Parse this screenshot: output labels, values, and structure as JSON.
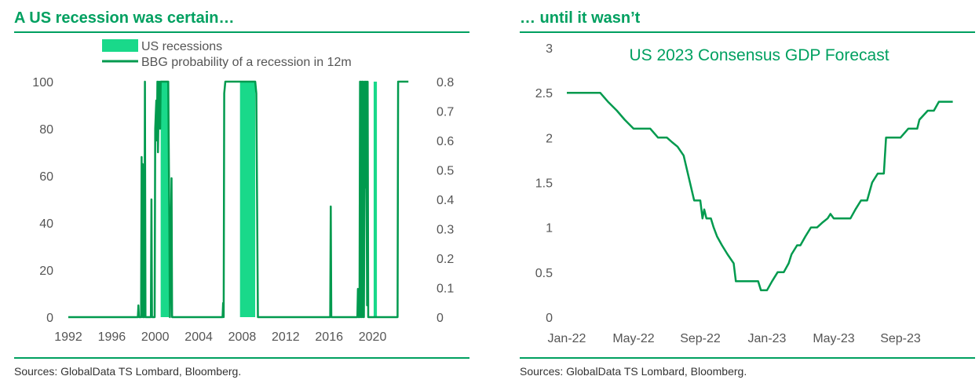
{
  "colors": {
    "accent": "#00a060",
    "line": "#009a4e",
    "recession": "#19d98a",
    "text": "#555555"
  },
  "left": {
    "title": "A US recession was certain…",
    "source": "Sources: GlobalData TS Lombard, Bloomberg.",
    "legend": [
      {
        "key": "US recessions",
        "style": "band"
      },
      {
        "key": "BBG probability of a recession in 12m",
        "style": "line"
      }
    ]
  },
  "right": {
    "title": "… until it wasn’t",
    "source": "Sources: GlobalData TS Lombard, Bloomberg."
  },
  "chart_data": [
    {
      "type": "line",
      "title": "A US recession was certain…",
      "x_range": [
        1992,
        2023.5
      ],
      "x_ticks": [
        "1992",
        "1996",
        "2000",
        "2004",
        "2008",
        "2012",
        "2016",
        "2020"
      ],
      "y_left_range": [
        0,
        100
      ],
      "y_left_ticks": [
        "0",
        "20",
        "40",
        "60",
        "80",
        "100"
      ],
      "y_right_range": [
        0,
        0.8
      ],
      "y_right_ticks": [
        "0",
        "0.1",
        "0.2",
        "0.3",
        "0.4",
        "0.5",
        "0.6",
        "0.7",
        "0.8"
      ],
      "grid": false,
      "legend_position": "top",
      "series": [
        {
          "name": "US recessions",
          "style": "band",
          "axis": "left",
          "periods": [
            [
              2000.5,
              2001.25
            ],
            [
              2007.8,
              2009.2
            ],
            [
              2020.1,
              2020.4
            ]
          ]
        },
        {
          "name": "BBG probability of a recession in 12m",
          "style": "line",
          "axis": "left",
          "points": [
            [
              1992,
              0
            ],
            [
              1998.4,
              0
            ],
            [
              1998.45,
              5
            ],
            [
              1998.5,
              0
            ],
            [
              1998.7,
              0
            ],
            [
              1998.75,
              68
            ],
            [
              1998.8,
              0
            ],
            [
              1998.85,
              65
            ],
            [
              1998.9,
              0
            ],
            [
              1999.0,
              0
            ],
            [
              1999.05,
              100
            ],
            [
              1999.1,
              0
            ],
            [
              1999.6,
              0
            ],
            [
              1999.65,
              50
            ],
            [
              1999.7,
              0
            ],
            [
              1999.95,
              0
            ],
            [
              2000.0,
              80
            ],
            [
              2000.1,
              92
            ],
            [
              2000.15,
              75
            ],
            [
              2000.2,
              100
            ],
            [
              2000.25,
              70
            ],
            [
              2000.35,
              100
            ],
            [
              2000.45,
              80
            ],
            [
              2000.5,
              100
            ],
            [
              2001.2,
              100
            ],
            [
              2001.3,
              40
            ],
            [
              2001.35,
              0
            ],
            [
              2001.5,
              59
            ],
            [
              2001.55,
              0
            ],
            [
              2006.2,
              0
            ],
            [
              2006.25,
              6
            ],
            [
              2006.3,
              0
            ],
            [
              2006.35,
              95
            ],
            [
              2006.45,
              100
            ],
            [
              2009.2,
              100
            ],
            [
              2009.3,
              95
            ],
            [
              2009.45,
              0
            ],
            [
              2016.1,
              0
            ],
            [
              2016.15,
              47
            ],
            [
              2016.2,
              0
            ],
            [
              2018.6,
              0
            ],
            [
              2018.65,
              12
            ],
            [
              2018.7,
              0
            ],
            [
              2018.8,
              0
            ],
            [
              2018.85,
              100
            ],
            [
              2018.9,
              0
            ],
            [
              2018.95,
              100
            ],
            [
              2019.0,
              0
            ],
            [
              2019.05,
              100
            ],
            [
              2019.1,
              0
            ],
            [
              2019.15,
              100
            ],
            [
              2019.2,
              0
            ],
            [
              2019.3,
              100
            ],
            [
              2019.35,
              55
            ],
            [
              2019.4,
              100
            ],
            [
              2019.5,
              5
            ],
            [
              2019.55,
              100
            ],
            [
              2019.6,
              0
            ],
            [
              2019.75,
              0
            ],
            [
              2022.3,
              0
            ],
            [
              2022.35,
              100
            ],
            [
              2023.3,
              100
            ]
          ]
        }
      ]
    },
    {
      "type": "line",
      "title": "US 2023 Consensus GDP Forecast",
      "x_ticks": [
        "Jan-22",
        "May-22",
        "Sep-22",
        "Jan-23",
        "May-23",
        "Sep-23"
      ],
      "y_ticks": [
        "0",
        "0.5",
        "1",
        "1.5",
        "2",
        "2.5",
        "3"
      ],
      "y_range": [
        0,
        3
      ],
      "grid": false,
      "series": [
        {
          "name": "US 2023 Consensus GDP Forecast",
          "points": [
            [
              "2022-01",
              2.5
            ],
            [
              "2022-02",
              2.5
            ],
            [
              "2022-03",
              2.5
            ],
            [
              "2022-03-15",
              2.4
            ],
            [
              "2022-04",
              2.3
            ],
            [
              "2022-04-15",
              2.2
            ],
            [
              "2022-05",
              2.1
            ],
            [
              "2022-06",
              2.1
            ],
            [
              "2022-06-15",
              2.0
            ],
            [
              "2022-07",
              2.0
            ],
            [
              "2022-07-10",
              1.95
            ],
            [
              "2022-07-20",
              1.9
            ],
            [
              "2022-08",
              1.8
            ],
            [
              "2022-08-20",
              1.3
            ],
            [
              "2022-09",
              1.3
            ],
            [
              "2022-09-05",
              1.1
            ],
            [
              "2022-09-08",
              1.2
            ],
            [
              "2022-09-12",
              1.1
            ],
            [
              "2022-09-20",
              1.1
            ],
            [
              "2022-09-25",
              1.0
            ],
            [
              "2022-10",
              0.9
            ],
            [
              "2022-10-10",
              0.8
            ],
            [
              "2022-10-20",
              0.7
            ],
            [
              "2022-11",
              0.6
            ],
            [
              "2022-11-05",
              0.4
            ],
            [
              "2022-12",
              0.4
            ],
            [
              "2022-12-15",
              0.4
            ],
            [
              "2022-12-20",
              0.3
            ],
            [
              "2023-01",
              0.3
            ],
            [
              "2023-01-10",
              0.4
            ],
            [
              "2023-01-20",
              0.5
            ],
            [
              "2023-02",
              0.5
            ],
            [
              "2023-02-10",
              0.6
            ],
            [
              "2023-02-15",
              0.7
            ],
            [
              "2023-02-25",
              0.8
            ],
            [
              "2023-03",
              0.8
            ],
            [
              "2023-03-10",
              0.9
            ],
            [
              "2023-03-20",
              1.0
            ],
            [
              "2023-04",
              1.0
            ],
            [
              "2023-04-10",
              1.05
            ],
            [
              "2023-04-20",
              1.1
            ],
            [
              "2023-04-25",
              1.15
            ],
            [
              "2023-05",
              1.1
            ],
            [
              "2023-06",
              1.1
            ],
            [
              "2023-06-10",
              1.2
            ],
            [
              "2023-06-20",
              1.3
            ],
            [
              "2023-07",
              1.3
            ],
            [
              "2023-07-10",
              1.5
            ],
            [
              "2023-07-20",
              1.6
            ],
            [
              "2023-08",
              1.6
            ],
            [
              "2023-08-05",
              2.0
            ],
            [
              "2023-09",
              2.0
            ],
            [
              "2023-09-15",
              2.1
            ],
            [
              "2023-10",
              2.1
            ],
            [
              "2023-10-05",
              2.2
            ],
            [
              "2023-10-20",
              2.3
            ],
            [
              "2023-11",
              2.3
            ],
            [
              "2023-11-10",
              2.4
            ],
            [
              "2023-12-05",
              2.4
            ]
          ]
        }
      ]
    }
  ]
}
